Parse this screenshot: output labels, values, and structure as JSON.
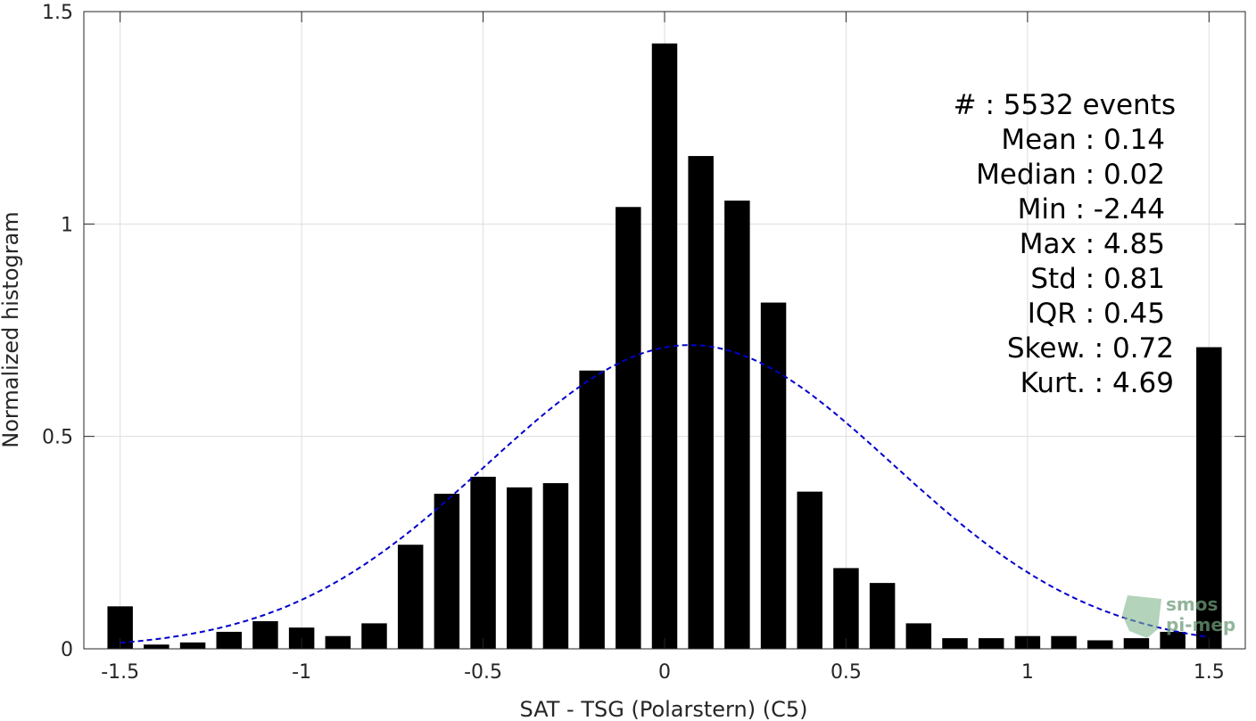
{
  "chart_data": {
    "type": "bar",
    "title": "",
    "xlabel": "SAT - TSG (Polarstern) (C5)",
    "ylabel": "Normalized histogram",
    "xlim": [
      -1.6,
      1.6
    ],
    "ylim": [
      0,
      1.5
    ],
    "xticks": [
      "-1.5",
      "-1",
      "-0.5",
      "0",
      "0.5",
      "1",
      "1.5"
    ],
    "xtick_values": [
      -1.5,
      -1,
      -0.5,
      0,
      0.5,
      1,
      1.5
    ],
    "yticks": [
      "0",
      "0.5",
      "1",
      "1.5"
    ],
    "ytick_values": [
      0,
      0.5,
      1,
      1.5
    ],
    "grid": true,
    "bar_color": "#000000",
    "bin_width": 0.1,
    "bar_width": 0.07,
    "x": [
      -1.5,
      -1.4,
      -1.3,
      -1.2,
      -1.1,
      -1.0,
      -0.9,
      -0.8,
      -0.7,
      -0.6,
      -0.5,
      -0.4,
      -0.3,
      -0.2,
      -0.1,
      0.0,
      0.1,
      0.2,
      0.3,
      0.4,
      0.5,
      0.6,
      0.7,
      0.8,
      0.9,
      1.0,
      1.1,
      1.2,
      1.3,
      1.4,
      1.5
    ],
    "values": [
      0.1,
      0.01,
      0.015,
      0.04,
      0.065,
      0.05,
      0.03,
      0.06,
      0.245,
      0.365,
      0.405,
      0.38,
      0.39,
      0.655,
      1.04,
      1.425,
      1.16,
      1.055,
      0.815,
      0.37,
      0.19,
      0.155,
      0.06,
      0.025,
      0.025,
      0.03,
      0.03,
      0.02,
      0.025,
      0.04,
      0.71
    ],
    "fit_curve": {
      "type": "gaussian",
      "style": "dashed",
      "color": "#0000cc",
      "mean": 0.07,
      "std": 0.56,
      "peak": 0.715,
      "x_range": [
        -1.5,
        1.5
      ]
    },
    "stats": [
      {
        "label": "#  : 5532 events"
      },
      {
        "label": "Mean : 0.14"
      },
      {
        "label": "Median : 0.02"
      },
      {
        "label": "Min : -2.44"
      },
      {
        "label": "Max : 4.85"
      },
      {
        "label": "Std : 0.81"
      },
      {
        "label": "IQR : 0.45"
      },
      {
        "label": "Skew. : 0.72"
      },
      {
        "label": "Kurt. : 4.69"
      }
    ]
  },
  "watermark": {
    "line1": "smos",
    "line2": "pi-mep"
  }
}
